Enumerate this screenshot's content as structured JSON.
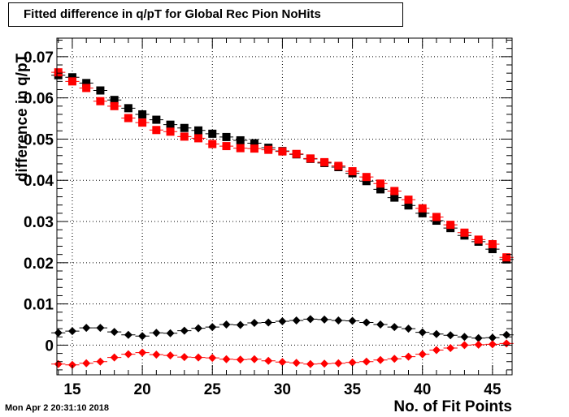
{
  "chart_data": {
    "type": "scatter",
    "title": "Fitted difference in q/pT for Global Rec Pion NoHits",
    "xlabel": "No. of Fit Points",
    "ylabel": "difference in q/pT",
    "xlim": [
      13.9,
      46.4
    ],
    "ylim": [
      -0.0072,
      0.0745
    ],
    "xticks": [
      15,
      20,
      25,
      30,
      35,
      40,
      45
    ],
    "yticks": [
      0,
      0.01,
      0.02,
      0.03,
      0.04,
      0.05,
      0.06,
      0.07
    ],
    "ytick_labels": [
      "0",
      "0.01",
      "0.02",
      "0.03",
      "0.04",
      "0.05",
      "0.06",
      "0.07"
    ],
    "grid": true,
    "legend": "none",
    "x": [
      14,
      15,
      16,
      17,
      18,
      19,
      20,
      21,
      22,
      23,
      24,
      25,
      26,
      27,
      28,
      29,
      30,
      31,
      32,
      33,
      34,
      35,
      36,
      37,
      38,
      39,
      40,
      41,
      42,
      43,
      44,
      45,
      46
    ],
    "series": [
      {
        "marker": "square",
        "color": "#000000",
        "values": [
          0.0655,
          0.065,
          0.0636,
          0.0618,
          0.0595,
          0.0575,
          0.056,
          0.0547,
          0.0535,
          0.0527,
          0.0521,
          0.0513,
          0.0505,
          0.0497,
          0.049,
          0.0479,
          0.0471,
          0.0463,
          0.0452,
          0.0442,
          0.0432,
          0.0417,
          0.0398,
          0.0378,
          0.0358,
          0.0339,
          0.032,
          0.0302,
          0.0284,
          0.0266,
          0.0251,
          0.0233,
          0.0208
        ]
      },
      {
        "marker": "square",
        "color": "#ff0000",
        "values": [
          0.0662,
          0.064,
          0.0624,
          0.0592,
          0.058,
          0.0551,
          0.054,
          0.0522,
          0.0518,
          0.0506,
          0.0502,
          0.0488,
          0.0483,
          0.0478,
          0.0477,
          0.0474,
          0.047,
          0.0464,
          0.0453,
          0.0444,
          0.0435,
          0.0422,
          0.0408,
          0.0392,
          0.0374,
          0.0353,
          0.0332,
          0.0311,
          0.0292,
          0.0273,
          0.0256,
          0.0245,
          0.0213
        ]
      },
      {
        "marker": "diamond",
        "color": "#000000",
        "values": [
          0.003,
          0.0034,
          0.0042,
          0.0042,
          0.0032,
          0.0025,
          0.0022,
          0.003,
          0.0029,
          0.0035,
          0.0041,
          0.0044,
          0.005,
          0.0049,
          0.0054,
          0.0055,
          0.0058,
          0.006,
          0.0063,
          0.0062,
          0.006,
          0.0059,
          0.0055,
          0.005,
          0.0044,
          0.004,
          0.0031,
          0.0027,
          0.0024,
          0.002,
          0.0017,
          0.0018,
          0.0025
        ]
      },
      {
        "marker": "diamond",
        "color": "#ff0000",
        "values": [
          -0.0046,
          -0.0048,
          -0.0044,
          -0.004,
          -0.003,
          -0.0022,
          -0.0018,
          -0.0023,
          -0.0025,
          -0.0029,
          -0.003,
          -0.0031,
          -0.0034,
          -0.0035,
          -0.0034,
          -0.0038,
          -0.0041,
          -0.0043,
          -0.0046,
          -0.0045,
          -0.0044,
          -0.0042,
          -0.004,
          -0.0036,
          -0.0033,
          -0.0028,
          -0.0022,
          -0.0012,
          -0.0007,
          0.0,
          0.0001,
          0.0002,
          0.0004
        ]
      }
    ]
  },
  "timestamp": "Mon Apr  2 20:31:10 2018"
}
